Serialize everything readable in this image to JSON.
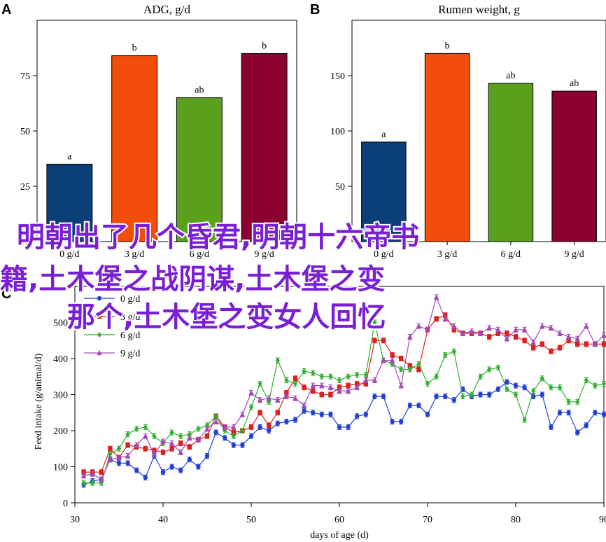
{
  "chart_data": [
    {
      "panel": "A",
      "type": "bar",
      "title": "ADG, g/d",
      "categories": [
        "0 g/d",
        "3 g/d",
        "6 g/d",
        "9 g/d"
      ],
      "values": [
        35,
        84,
        65,
        85
      ],
      "letters": [
        "a",
        "b",
        "ab",
        "b"
      ],
      "colors": [
        "#0a3f78",
        "#f24d0a",
        "#5aa01c",
        "#8a0030"
      ],
      "ylim": [
        0,
        100
      ],
      "yticks": [
        0,
        25,
        50,
        75
      ]
    },
    {
      "panel": "B",
      "type": "bar",
      "title": "Rumen weight, g",
      "categories": [
        "0 g/d",
        "3 g/d",
        "6 g/d",
        "9 g/d"
      ],
      "values": [
        90,
        170,
        143,
        136
      ],
      "letters": [
        "a",
        "b",
        "ab",
        "ab"
      ],
      "colors": [
        "#0a3f78",
        "#f24d0a",
        "#5aa01c",
        "#8a0030"
      ],
      "ylim": [
        0,
        200
      ],
      "yticks": [
        50,
        100,
        150
      ]
    },
    {
      "panel": "C",
      "type": "line",
      "xlabel": "days of age (d)",
      "ylabel": "Feed intake (g/animal/d)",
      "xlim": [
        30,
        90
      ],
      "ylim": [
        0,
        600
      ],
      "xticks": [
        30,
        40,
        50,
        60,
        70,
        80,
        90
      ],
      "yticks": [
        0,
        100,
        200,
        300,
        400,
        500
      ],
      "series": [
        {
          "name": "0 g/d",
          "color": "#1f3fd6",
          "marker": "circle",
          "points": [
            [
              31,
              50
            ],
            [
              32,
              60
            ],
            [
              33,
              65
            ],
            [
              34,
              120
            ],
            [
              35,
              110
            ],
            [
              36,
              110
            ],
            [
              37,
              90
            ],
            [
              38,
              70
            ],
            [
              39,
              130
            ],
            [
              40,
              85
            ],
            [
              41,
              100
            ],
            [
              42,
              90
            ],
            [
              43,
              120
            ],
            [
              44,
              100
            ],
            [
              45,
              130
            ],
            [
              46,
              195
            ],
            [
              47,
              180
            ],
            [
              48,
              160
            ],
            [
              49,
              160
            ],
            [
              50,
              185
            ],
            [
              51,
              210
            ],
            [
              52,
              200
            ],
            [
              53,
              220
            ],
            [
              54,
              225
            ],
            [
              55,
              230
            ],
            [
              56,
              255
            ],
            [
              57,
              250
            ],
            [
              58,
              245
            ],
            [
              59,
              245
            ],
            [
              60,
              210
            ],
            [
              61,
              210
            ],
            [
              62,
              240
            ],
            [
              63,
              245
            ],
            [
              64,
              295
            ],
            [
              65,
              295
            ],
            [
              66,
              225
            ],
            [
              67,
              225
            ],
            [
              68,
              270
            ],
            [
              69,
              270
            ],
            [
              70,
              245
            ],
            [
              71,
              295
            ],
            [
              72,
              295
            ],
            [
              73,
              285
            ],
            [
              74,
              315
            ],
            [
              75,
              295
            ],
            [
              76,
              300
            ],
            [
              77,
              300
            ],
            [
              78,
              315
            ],
            [
              79,
              335
            ],
            [
              80,
              325
            ],
            [
              81,
              320
            ],
            [
              82,
              295
            ],
            [
              83,
              300
            ],
            [
              84,
              210
            ],
            [
              85,
              250
            ],
            [
              86,
              250
            ],
            [
              87,
              195
            ],
            [
              88,
              215
            ],
            [
              89,
              250
            ],
            [
              90,
              245
            ]
          ]
        },
        {
          "name": "3 g/d",
          "color": "#e01e1e",
          "marker": "square",
          "points": [
            [
              31,
              85
            ],
            [
              32,
              85
            ],
            [
              33,
              85
            ],
            [
              34,
              150
            ],
            [
              35,
              125
            ],
            [
              36,
              160
            ],
            [
              37,
              155
            ],
            [
              38,
              150
            ],
            [
              39,
              145
            ],
            [
              40,
              140
            ],
            [
              41,
              150
            ],
            [
              42,
              165
            ],
            [
              43,
              155
            ],
            [
              44,
              175
            ],
            [
              45,
              185
            ],
            [
              46,
              240
            ],
            [
              47,
              210
            ],
            [
              48,
              195
            ],
            [
              49,
              200
            ],
            [
              50,
              210
            ],
            [
              51,
              250
            ],
            [
              52,
              215
            ],
            [
              53,
              250
            ],
            [
              54,
              305
            ],
            [
              55,
              345
            ],
            [
              56,
              320
            ],
            [
              57,
              310
            ],
            [
              58,
              300
            ],
            [
              59,
              300
            ],
            [
              60,
              320
            ],
            [
              61,
              325
            ],
            [
              62,
              330
            ],
            [
              63,
              330
            ],
            [
              64,
              450
            ],
            [
              65,
              450
            ],
            [
              66,
              410
            ],
            [
              67,
              400
            ],
            [
              68,
              380
            ],
            [
              69,
              370
            ],
            [
              70,
              480
            ],
            [
              71,
              510
            ],
            [
              72,
              520
            ],
            [
              73,
              480
            ],
            [
              74,
              470
            ],
            [
              75,
              470
            ],
            [
              76,
              470
            ],
            [
              77,
              460
            ],
            [
              78,
              470
            ],
            [
              79,
              470
            ],
            [
              80,
              460
            ],
            [
              81,
              450
            ],
            [
              82,
              430
            ],
            [
              83,
              440
            ],
            [
              84,
              420
            ],
            [
              85,
              430
            ],
            [
              86,
              450
            ],
            [
              87,
              440
            ],
            [
              88,
              440
            ],
            [
              89,
              440
            ],
            [
              90,
              440
            ]
          ]
        },
        {
          "name": "6 g/d",
          "color": "#2fb02f",
          "marker": "diamond",
          "points": [
            [
              31,
              55
            ],
            [
              32,
              55
            ],
            [
              33,
              55
            ],
            [
              34,
              135
            ],
            [
              35,
              150
            ],
            [
              36,
              190
            ],
            [
              37,
              205
            ],
            [
              38,
              210
            ],
            [
              39,
              185
            ],
            [
              40,
              165
            ],
            [
              41,
              195
            ],
            [
              42,
              185
            ],
            [
              43,
              190
            ],
            [
              44,
              205
            ],
            [
              45,
              215
            ],
            [
              46,
              240
            ],
            [
              47,
              200
            ],
            [
              48,
              185
            ],
            [
              49,
              200
            ],
            [
              50,
              265
            ],
            [
              51,
              330
            ],
            [
              52,
              280
            ],
            [
              53,
              395
            ],
            [
              54,
              340
            ],
            [
              55,
              330
            ],
            [
              56,
              365
            ],
            [
              57,
              360
            ],
            [
              58,
              350
            ],
            [
              59,
              350
            ],
            [
              60,
              340
            ],
            [
              61,
              350
            ],
            [
              62,
              355
            ],
            [
              63,
              355
            ],
            [
              64,
              500
            ],
            [
              65,
              395
            ],
            [
              66,
              385
            ],
            [
              67,
              370
            ],
            [
              68,
              370
            ],
            [
              69,
              385
            ],
            [
              70,
              330
            ],
            [
              71,
              350
            ],
            [
              72,
              410
            ],
            [
              73,
              420
            ],
            [
              74,
              295
            ],
            [
              75,
              300
            ],
            [
              76,
              350
            ],
            [
              77,
              370
            ],
            [
              78,
              375
            ],
            [
              79,
              315
            ],
            [
              80,
              300
            ],
            [
              81,
              230
            ],
            [
              82,
              310
            ],
            [
              83,
              345
            ],
            [
              84,
              320
            ],
            [
              85,
              320
            ],
            [
              86,
              280
            ],
            [
              87,
              280
            ],
            [
              88,
              340
            ],
            [
              89,
              325
            ],
            [
              90,
              330
            ]
          ]
        },
        {
          "name": "9 g/d",
          "color": "#a24ab8",
          "marker": "triangle",
          "points": [
            [
              31,
              75
            ],
            [
              32,
              80
            ],
            [
              33,
              65
            ],
            [
              34,
              120
            ],
            [
              35,
              125
            ],
            [
              36,
              130
            ],
            [
              37,
              160
            ],
            [
              38,
              185
            ],
            [
              39,
              135
            ],
            [
              40,
              170
            ],
            [
              41,
              165
            ],
            [
              42,
              140
            ],
            [
              43,
              180
            ],
            [
              44,
              175
            ],
            [
              45,
              205
            ],
            [
              46,
              225
            ],
            [
              47,
              210
            ],
            [
              48,
              210
            ],
            [
              49,
              245
            ],
            [
              50,
              305
            ],
            [
              51,
              285
            ],
            [
              52,
              290
            ],
            [
              53,
              285
            ],
            [
              54,
              295
            ],
            [
              55,
              290
            ],
            [
              56,
              270
            ],
            [
              57,
              325
            ],
            [
              58,
              325
            ],
            [
              59,
              320
            ],
            [
              60,
              310
            ],
            [
              61,
              310
            ],
            [
              62,
              320
            ],
            [
              63,
              340
            ],
            [
              64,
              340
            ],
            [
              65,
              395
            ],
            [
              66,
              395
            ],
            [
              67,
              325
            ],
            [
              68,
              460
            ],
            [
              69,
              490
            ],
            [
              70,
              480
            ],
            [
              71,
              570
            ],
            [
              72,
              510
            ],
            [
              73,
              490
            ],
            [
              74,
              470
            ],
            [
              75,
              475
            ],
            [
              76,
              470
            ],
            [
              77,
              485
            ],
            [
              78,
              480
            ],
            [
              79,
              455
            ],
            [
              80,
              480
            ],
            [
              81,
              480
            ],
            [
              82,
              445
            ],
            [
              83,
              490
            ],
            [
              84,
              485
            ],
            [
              85,
              470
            ],
            [
              86,
              460
            ],
            [
              87,
              455
            ],
            [
              88,
              490
            ],
            [
              89,
              440
            ],
            [
              90,
              465
            ]
          ]
        }
      ]
    }
  ],
  "panel_letters": {
    "a": "A",
    "b": "B",
    "c": "C"
  },
  "overlay": {
    "line1": "明朝出了几个昏君,明朝十六帝书",
    "line2": "籍,土木堡之战阴谋,土木堡之变",
    "line3": "那个,土木堡之变女人回忆"
  }
}
